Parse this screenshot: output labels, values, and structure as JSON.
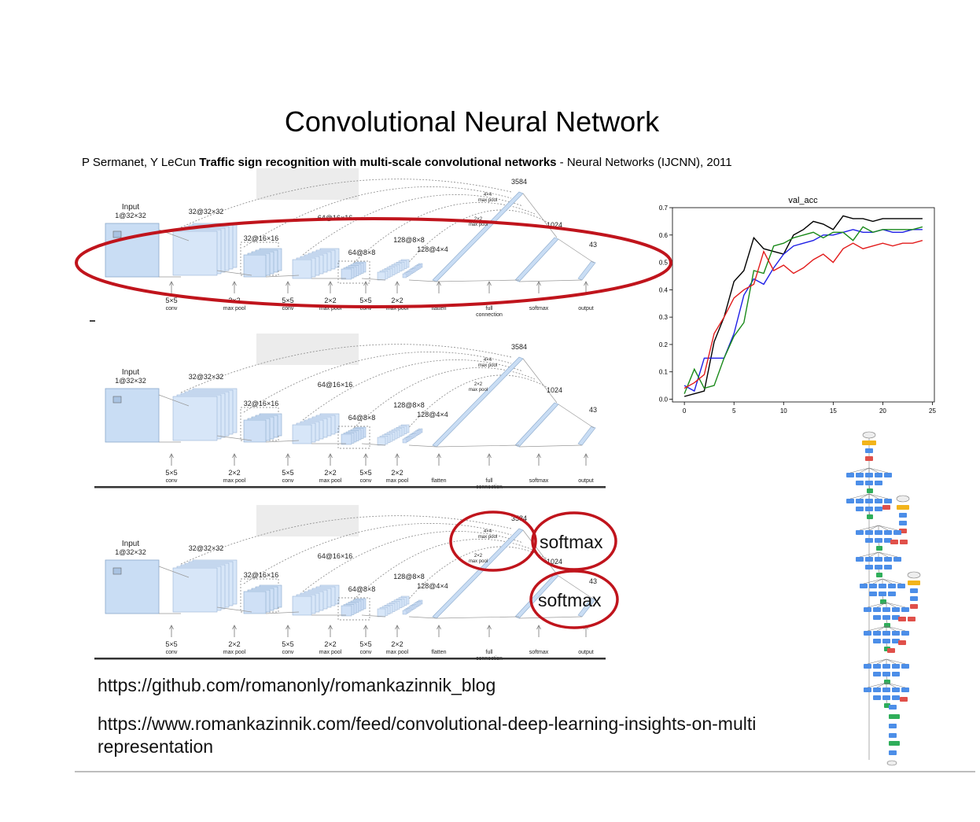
{
  "slide": {
    "title": "Convolutional Neural Network",
    "citation": {
      "authors": "P Sermanet, Y LeCun ",
      "paper_title": "Traffic sign recognition with multi-scale convolutional networks",
      "venue": " - Neural Networks (IJCNN), 2011"
    },
    "links": [
      "https://github.com/romanonly/romankazinnik_blog",
      "https://www.romankazinnik.com/feed/convolutional-deep-learning-insights-on-multi representation"
    ],
    "annotations": {
      "softmax_top": "softmax",
      "softmax_bottom": "softmax"
    },
    "highlight_color": "#c0141c"
  },
  "architecture_diagram": {
    "input_label": "Input",
    "input_shape": "1@32×32",
    "feature_maps": [
      "32@32×32",
      "32@16×16",
      "64@16×16",
      "64@8×8",
      "128@8×8",
      "128@4×4"
    ],
    "top_feature_maps": [
      "32@32×32",
      "32@16×16",
      "64@16×16",
      "64@8×8",
      "128@8×8",
      "128@4×4"
    ],
    "dense_sizes": [
      "3584",
      "1024",
      "43"
    ],
    "pool_labels": [
      "4×4\nmax pool",
      "2×2\nmax pool"
    ],
    "ops": [
      {
        "top": "5×5",
        "bottom": "conv"
      },
      {
        "top": "2×2",
        "bottom": "max pool"
      },
      {
        "top": "5×5",
        "bottom": "conv"
      },
      {
        "top": "2×2",
        "bottom": "max pool"
      },
      {
        "top": "5×5",
        "bottom": "conv"
      },
      {
        "top": "2×2",
        "bottom": "max pool"
      },
      {
        "top": "",
        "bottom": "flatten"
      },
      {
        "top": "",
        "bottom": "full\nconnection"
      },
      {
        "top": "",
        "bottom": "softmax"
      },
      {
        "top": "",
        "bottom": "output"
      }
    ]
  },
  "chart_data": {
    "type": "line",
    "title": "val_acc",
    "xlim": [
      -1.2,
      25.2
    ],
    "ylim": [
      -0.01,
      0.7
    ],
    "xticks": [
      0,
      5,
      10,
      15,
      20,
      25
    ],
    "yticks": [
      0.0,
      0.1,
      0.2,
      0.3,
      0.4,
      0.5,
      0.6,
      0.7
    ],
    "x": [
      0,
      1,
      2,
      3,
      4,
      5,
      6,
      7,
      8,
      9,
      10,
      11,
      12,
      13,
      14,
      15,
      16,
      17,
      18,
      19,
      20,
      21,
      22,
      23,
      24
    ],
    "series": [
      {
        "color": "#000000",
        "values": [
          0.01,
          0.02,
          0.03,
          0.21,
          0.3,
          0.43,
          0.47,
          0.59,
          0.55,
          0.54,
          0.53,
          0.6,
          0.62,
          0.65,
          0.64,
          0.62,
          0.67,
          0.66,
          0.66,
          0.65,
          0.66,
          0.66,
          0.66,
          0.66,
          0.66
        ]
      },
      {
        "color": "#1f1fe6",
        "values": [
          0.05,
          0.03,
          0.15,
          0.15,
          0.15,
          0.24,
          0.38,
          0.44,
          0.42,
          0.48,
          0.53,
          0.56,
          0.57,
          0.58,
          0.6,
          0.6,
          0.61,
          0.62,
          0.61,
          0.61,
          0.62,
          0.61,
          0.61,
          0.62,
          0.62
        ]
      },
      {
        "color": "#1a8a1a",
        "values": [
          0.02,
          0.11,
          0.04,
          0.05,
          0.15,
          0.23,
          0.28,
          0.47,
          0.46,
          0.56,
          0.57,
          0.59,
          0.6,
          0.61,
          0.59,
          0.61,
          0.61,
          0.58,
          0.63,
          0.61,
          0.62,
          0.62,
          0.62,
          0.62,
          0.63
        ]
      },
      {
        "color": "#e21c1c",
        "values": [
          0.04,
          0.06,
          0.09,
          0.24,
          0.3,
          0.37,
          0.4,
          0.42,
          0.54,
          0.47,
          0.49,
          0.46,
          0.48,
          0.51,
          0.53,
          0.5,
          0.55,
          0.57,
          0.55,
          0.56,
          0.57,
          0.56,
          0.57,
          0.57,
          0.58
        ]
      }
    ]
  }
}
